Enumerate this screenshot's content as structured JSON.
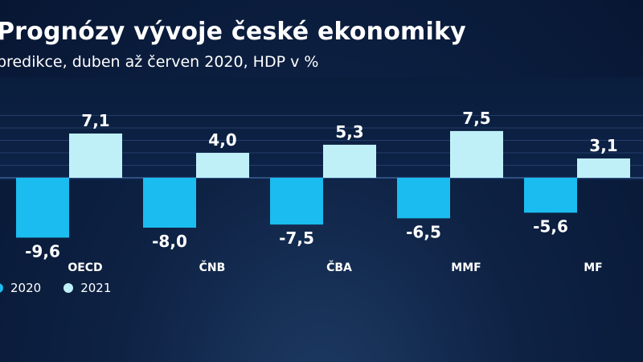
{
  "title": "Prognózy vývoje české ekonomiky",
  "subtitle": "predikce, duben až červen 2020, HDP v %",
  "chart_data": {
    "type": "bar",
    "categories": [
      "OECD",
      "ČNB",
      "ČBA",
      "MMF",
      "MF"
    ],
    "series": [
      {
        "name": "2020",
        "values": [
          -9.6,
          -8.0,
          -7.5,
          -6.5,
          -5.6
        ],
        "labels": [
          "-9,6",
          "-8,0",
          "-7,5",
          "-6,5",
          "-5,6"
        ],
        "color": "#1bbcf0"
      },
      {
        "name": "2021",
        "values": [
          7.1,
          4.0,
          5.3,
          7.5,
          3.1
        ],
        "labels": [
          "7,1",
          "4,0",
          "5,3",
          "7,5",
          "3,1"
        ],
        "color": "#bff0f8"
      }
    ],
    "xlabel": "",
    "ylabel": "",
    "ylim": [
      -11,
      12
    ],
    "grid": true,
    "legend_position": "bottom-left"
  }
}
